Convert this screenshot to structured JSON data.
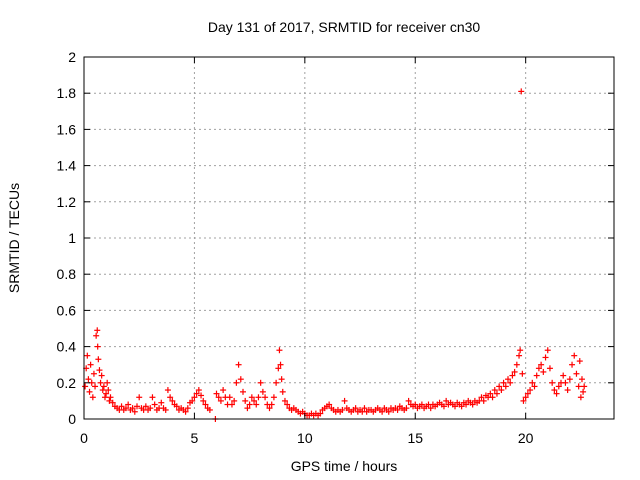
{
  "chart_data": {
    "type": "scatter",
    "title": "Day 131 of 2017, SRMTID for receiver cn30",
    "xlabel": "GPS time / hours",
    "ylabel": "SRMTID / TECUs",
    "xlim": [
      0,
      24
    ],
    "ylim": [
      0,
      2
    ],
    "xticks": [
      0,
      5,
      10,
      15,
      20
    ],
    "yticks": [
      0,
      0.2,
      0.4,
      0.6,
      0.8,
      1,
      1.2,
      1.4,
      1.6,
      1.8,
      2
    ],
    "xtick_labels": [
      "0",
      "5",
      "10",
      "15",
      "20"
    ],
    "ytick_labels": [
      "0",
      "0.2",
      "0.4",
      "0.6",
      "0.8",
      "1",
      "1.2",
      "1.4",
      "1.6",
      "1.8",
      "2"
    ],
    "grid": true,
    "marker": "+",
    "series_color": "#ff0000",
    "series": [
      {
        "name": "SRMTID",
        "points": [
          [
            0.05,
            0.18
          ],
          [
            0.1,
            0.28
          ],
          [
            0.15,
            0.35
          ],
          [
            0.2,
            0.22
          ],
          [
            0.25,
            0.15
          ],
          [
            0.3,
            0.3
          ],
          [
            0.35,
            0.2
          ],
          [
            0.4,
            0.12
          ],
          [
            0.45,
            0.25
          ],
          [
            0.5,
            0.18
          ],
          [
            0.55,
            0.46
          ],
          [
            0.6,
            0.49
          ],
          [
            0.62,
            0.4
          ],
          [
            0.65,
            0.33
          ],
          [
            0.7,
            0.27
          ],
          [
            0.75,
            0.2
          ],
          [
            0.8,
            0.24
          ],
          [
            0.85,
            0.16
          ],
          [
            0.9,
            0.18
          ],
          [
            0.95,
            0.12
          ],
          [
            1.0,
            0.14
          ],
          [
            1.05,
            0.2
          ],
          [
            1.1,
            0.16
          ],
          [
            1.15,
            0.1
          ],
          [
            1.2,
            0.12
          ],
          [
            1.3,
            0.09
          ],
          [
            1.4,
            0.07
          ],
          [
            1.5,
            0.06
          ],
          [
            1.6,
            0.05
          ],
          [
            1.7,
            0.07
          ],
          [
            1.8,
            0.05
          ],
          [
            1.9,
            0.06
          ],
          [
            2.0,
            0.08
          ],
          [
            2.1,
            0.05
          ],
          [
            2.2,
            0.06
          ],
          [
            2.3,
            0.04
          ],
          [
            2.4,
            0.07
          ],
          [
            2.5,
            0.12
          ],
          [
            2.6,
            0.06
          ],
          [
            2.7,
            0.05
          ],
          [
            2.8,
            0.07
          ],
          [
            2.9,
            0.05
          ],
          [
            3.0,
            0.06
          ],
          [
            3.1,
            0.12
          ],
          [
            3.2,
            0.08
          ],
          [
            3.3,
            0.05
          ],
          [
            3.4,
            0.06
          ],
          [
            3.5,
            0.09
          ],
          [
            3.6,
            0.06
          ],
          [
            3.7,
            0.05
          ],
          [
            3.8,
            0.16
          ],
          [
            3.9,
            0.12
          ],
          [
            4.0,
            0.1
          ],
          [
            4.1,
            0.08
          ],
          [
            4.2,
            0.07
          ],
          [
            4.3,
            0.05
          ],
          [
            4.4,
            0.06
          ],
          [
            4.5,
            0.05
          ],
          [
            4.6,
            0.04
          ],
          [
            4.7,
            0.06
          ],
          [
            4.8,
            0.09
          ],
          [
            4.9,
            0.1
          ],
          [
            5.0,
            0.12
          ],
          [
            5.1,
            0.14
          ],
          [
            5.2,
            0.16
          ],
          [
            5.3,
            0.13
          ],
          [
            5.4,
            0.1
          ],
          [
            5.5,
            0.08
          ],
          [
            5.6,
            0.06
          ],
          [
            5.7,
            0.05
          ],
          [
            5.95,
            0.0
          ],
          [
            6.0,
            0.14
          ],
          [
            6.1,
            0.12
          ],
          [
            6.2,
            0.1
          ],
          [
            6.3,
            0.16
          ],
          [
            6.4,
            0.12
          ],
          [
            6.5,
            0.08
          ],
          [
            6.6,
            0.12
          ],
          [
            6.7,
            0.08
          ],
          [
            6.8,
            0.1
          ],
          [
            6.9,
            0.2
          ],
          [
            7.0,
            0.3
          ],
          [
            7.1,
            0.22
          ],
          [
            7.2,
            0.15
          ],
          [
            7.3,
            0.1
          ],
          [
            7.4,
            0.06
          ],
          [
            7.5,
            0.08
          ],
          [
            7.6,
            0.12
          ],
          [
            7.7,
            0.1
          ],
          [
            7.8,
            0.08
          ],
          [
            7.9,
            0.12
          ],
          [
            8.0,
            0.2
          ],
          [
            8.1,
            0.15
          ],
          [
            8.2,
            0.12
          ],
          [
            8.3,
            0.08
          ],
          [
            8.4,
            0.06
          ],
          [
            8.5,
            0.08
          ],
          [
            8.6,
            0.12
          ],
          [
            8.7,
            0.2
          ],
          [
            8.8,
            0.28
          ],
          [
            8.85,
            0.38
          ],
          [
            8.9,
            0.3
          ],
          [
            8.95,
            0.22
          ],
          [
            9.0,
            0.15
          ],
          [
            9.1,
            0.1
          ],
          [
            9.2,
            0.08
          ],
          [
            9.3,
            0.06
          ],
          [
            9.4,
            0.05
          ],
          [
            9.5,
            0.06
          ],
          [
            9.6,
            0.05
          ],
          [
            9.7,
            0.04
          ],
          [
            9.8,
            0.03
          ],
          [
            9.9,
            0.04
          ],
          [
            10.0,
            0.03
          ],
          [
            10.1,
            0.02
          ],
          [
            10.2,
            0.02
          ],
          [
            10.3,
            0.03
          ],
          [
            10.4,
            0.02
          ],
          [
            10.5,
            0.03
          ],
          [
            10.6,
            0.02
          ],
          [
            10.7,
            0.03
          ],
          [
            10.8,
            0.05
          ],
          [
            10.9,
            0.06
          ],
          [
            11.0,
            0.07
          ],
          [
            11.1,
            0.08
          ],
          [
            11.2,
            0.06
          ],
          [
            11.3,
            0.05
          ],
          [
            11.4,
            0.04
          ],
          [
            11.5,
            0.05
          ],
          [
            11.6,
            0.04
          ],
          [
            11.7,
            0.05
          ],
          [
            11.8,
            0.1
          ],
          [
            11.9,
            0.06
          ],
          [
            12.0,
            0.05
          ],
          [
            12.1,
            0.04
          ],
          [
            12.2,
            0.05
          ],
          [
            12.3,
            0.06
          ],
          [
            12.4,
            0.04
          ],
          [
            12.5,
            0.05
          ],
          [
            12.6,
            0.04
          ],
          [
            12.7,
            0.06
          ],
          [
            12.8,
            0.04
          ],
          [
            12.9,
            0.05
          ],
          [
            13.0,
            0.05
          ],
          [
            13.1,
            0.04
          ],
          [
            13.2,
            0.05
          ],
          [
            13.3,
            0.06
          ],
          [
            13.4,
            0.05
          ],
          [
            13.5,
            0.04
          ],
          [
            13.6,
            0.06
          ],
          [
            13.7,
            0.05
          ],
          [
            13.8,
            0.04
          ],
          [
            13.9,
            0.06
          ],
          [
            14.0,
            0.05
          ],
          [
            14.1,
            0.06
          ],
          [
            14.2,
            0.05
          ],
          [
            14.3,
            0.07
          ],
          [
            14.4,
            0.06
          ],
          [
            14.5,
            0.05
          ],
          [
            14.6,
            0.06
          ],
          [
            14.7,
            0.1
          ],
          [
            14.8,
            0.08
          ],
          [
            14.9,
            0.07
          ],
          [
            15.0,
            0.08
          ],
          [
            15.1,
            0.06
          ],
          [
            15.2,
            0.07
          ],
          [
            15.3,
            0.08
          ],
          [
            15.4,
            0.06
          ],
          [
            15.5,
            0.07
          ],
          [
            15.6,
            0.08
          ],
          [
            15.7,
            0.06
          ],
          [
            15.8,
            0.08
          ],
          [
            15.9,
            0.07
          ],
          [
            16.0,
            0.08
          ],
          [
            16.1,
            0.09
          ],
          [
            16.2,
            0.08
          ],
          [
            16.3,
            0.07
          ],
          [
            16.4,
            0.1
          ],
          [
            16.5,
            0.08
          ],
          [
            16.6,
            0.09
          ],
          [
            16.7,
            0.08
          ],
          [
            16.8,
            0.07
          ],
          [
            16.9,
            0.09
          ],
          [
            17.0,
            0.08
          ],
          [
            17.1,
            0.07
          ],
          [
            17.2,
            0.09
          ],
          [
            17.3,
            0.08
          ],
          [
            17.4,
            0.1
          ],
          [
            17.5,
            0.09
          ],
          [
            17.6,
            0.08
          ],
          [
            17.7,
            0.1
          ],
          [
            17.8,
            0.09
          ],
          [
            17.9,
            0.1
          ],
          [
            18.0,
            0.12
          ],
          [
            18.1,
            0.1
          ],
          [
            18.2,
            0.13
          ],
          [
            18.3,
            0.12
          ],
          [
            18.4,
            0.14
          ],
          [
            18.5,
            0.12
          ],
          [
            18.6,
            0.16
          ],
          [
            18.7,
            0.14
          ],
          [
            18.8,
            0.18
          ],
          [
            18.9,
            0.16
          ],
          [
            19.0,
            0.2
          ],
          [
            19.1,
            0.18
          ],
          [
            19.2,
            0.22
          ],
          [
            19.3,
            0.2
          ],
          [
            19.4,
            0.24
          ],
          [
            19.5,
            0.26
          ],
          [
            19.6,
            0.3
          ],
          [
            19.7,
            0.35
          ],
          [
            19.75,
            0.38
          ],
          [
            19.8,
            1.81
          ],
          [
            19.85,
            0.25
          ],
          [
            19.9,
            0.1
          ],
          [
            20.0,
            0.12
          ],
          [
            20.1,
            0.14
          ],
          [
            20.2,
            0.16
          ],
          [
            20.3,
            0.2
          ],
          [
            20.4,
            0.18
          ],
          [
            20.5,
            0.24
          ],
          [
            20.6,
            0.28
          ],
          [
            20.7,
            0.3
          ],
          [
            20.8,
            0.26
          ],
          [
            20.9,
            0.34
          ],
          [
            21.0,
            0.38
          ],
          [
            21.1,
            0.28
          ],
          [
            21.2,
            0.2
          ],
          [
            21.3,
            0.16
          ],
          [
            21.4,
            0.14
          ],
          [
            21.5,
            0.18
          ],
          [
            21.6,
            0.2
          ],
          [
            21.7,
            0.24
          ],
          [
            21.8,
            0.2
          ],
          [
            21.9,
            0.16
          ],
          [
            22.0,
            0.22
          ],
          [
            22.1,
            0.3
          ],
          [
            22.2,
            0.35
          ],
          [
            22.3,
            0.25
          ],
          [
            22.4,
            0.18
          ],
          [
            22.45,
            0.32
          ],
          [
            22.5,
            0.12
          ],
          [
            22.55,
            0.22
          ],
          [
            22.6,
            0.15
          ],
          [
            22.65,
            0.18
          ]
        ]
      }
    ]
  }
}
